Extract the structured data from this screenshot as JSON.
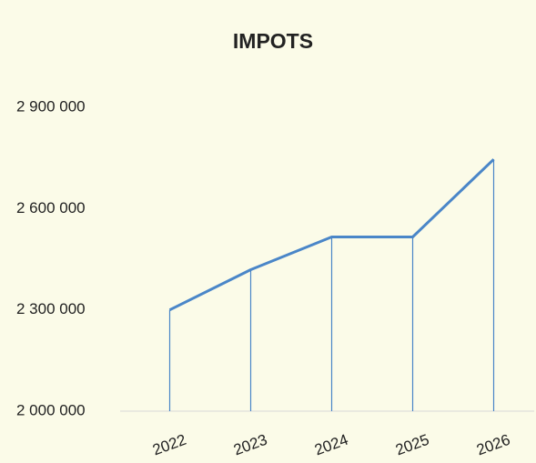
{
  "chart_data": {
    "type": "line",
    "title": "IMPOTS",
    "categories": [
      "2022",
      "2023",
      "2024",
      "2025",
      "2026"
    ],
    "series": [
      {
        "color": "#4a86c8",
        "values": [
          2300000,
          2419000,
          2516000,
          2516000,
          2746000
        ]
      }
    ],
    "ylim": [
      2000000,
      2900000
    ],
    "yticks": [
      {
        "value": 2000000,
        "label": "2 000 000"
      },
      {
        "value": 2300000,
        "label": "2 300 000"
      },
      {
        "value": 2600000,
        "label": "2 600 000"
      },
      {
        "value": 2900000,
        "label": "2 900 000"
      }
    ],
    "drop_lines": true
  }
}
